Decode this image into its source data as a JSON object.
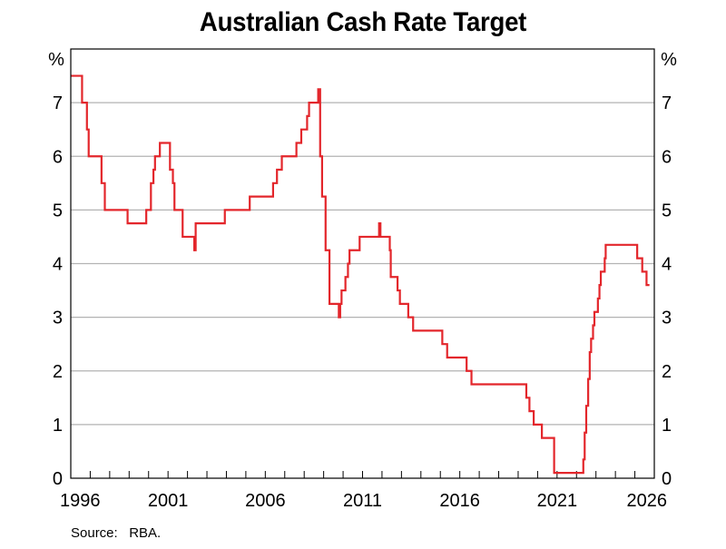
{
  "title": "Australian Cash Rate Target",
  "source": {
    "label": "Source:",
    "value": "RBA."
  },
  "axes": {
    "left_unit": "%",
    "right_unit": "%",
    "y_ticks": [
      "0",
      "1",
      "2",
      "3",
      "4",
      "5",
      "6",
      "7"
    ],
    "x_ticks": [
      "1996",
      "2001",
      "2006",
      "2011",
      "2016",
      "2021",
      "2026"
    ]
  },
  "colors": {
    "line": "#e3262b",
    "grid": "#b3b3b3",
    "axis": "#000000"
  },
  "chart_data": {
    "type": "line",
    "step": true,
    "title": "Australian Cash Rate Target",
    "xlabel": "",
    "ylabel": "%",
    "xlim": [
      1996,
      2026
    ],
    "ylim": [
      0,
      8
    ],
    "grid": "horizontal",
    "legend": "none",
    "x_ticks": [
      1996,
      2001,
      2006,
      2011,
      2016,
      2021,
      2026
    ],
    "y_ticks": [
      0,
      1,
      2,
      3,
      4,
      5,
      6,
      7
    ],
    "series": [
      {
        "name": "Cash rate target",
        "x": [
          1996.0,
          1996.58,
          1996.83,
          1996.92,
          1997.58,
          1997.75,
          1998.92,
          1999.88,
          2000.12,
          2000.25,
          2000.33,
          2000.58,
          2001.1,
          2001.25,
          2001.33,
          2001.75,
          2002.35,
          2002.42,
          2003.85,
          2003.92,
          2005.2,
          2006.4,
          2006.6,
          2006.85,
          2007.6,
          2007.85,
          2008.15,
          2008.25,
          2008.72,
          2008.82,
          2008.92,
          2009.1,
          2009.3,
          2009.78,
          2009.85,
          2009.92,
          2010.12,
          2010.25,
          2010.33,
          2010.85,
          2011.85,
          2011.92,
          2012.4,
          2012.45,
          2012.8,
          2012.92,
          2013.35,
          2013.6,
          2015.1,
          2015.35,
          2016.35,
          2016.6,
          2019.42,
          2019.58,
          2019.8,
          2020.22,
          2020.85,
          2022.35,
          2022.42,
          2022.5,
          2022.6,
          2022.68,
          2022.75,
          2022.85,
          2022.92,
          2023.1,
          2023.18,
          2023.25,
          2023.45,
          2023.5,
          2023.85,
          2025.12,
          2025.38,
          2025.6,
          2025.75
        ],
        "values": [
          7.5,
          7.0,
          6.5,
          6.0,
          5.5,
          5.0,
          4.75,
          5.0,
          5.5,
          5.75,
          6.0,
          6.25,
          5.75,
          5.5,
          5.0,
          4.5,
          4.25,
          4.75,
          4.75,
          5.0,
          5.25,
          5.5,
          5.75,
          6.0,
          6.25,
          6.5,
          6.75,
          7.0,
          7.25,
          6.0,
          5.25,
          4.25,
          3.25,
          3.0,
          3.25,
          3.5,
          3.75,
          4.0,
          4.25,
          4.5,
          4.75,
          4.5,
          4.25,
          3.75,
          3.5,
          3.25,
          3.0,
          2.75,
          2.5,
          2.25,
          2.0,
          1.75,
          1.5,
          1.25,
          1.0,
          0.75,
          0.1,
          0.35,
          0.85,
          1.35,
          1.85,
          2.35,
          2.6,
          2.85,
          3.1,
          3.35,
          3.6,
          3.85,
          4.1,
          4.35,
          4.35,
          4.1,
          3.85,
          3.6,
          3.6
        ]
      }
    ]
  }
}
